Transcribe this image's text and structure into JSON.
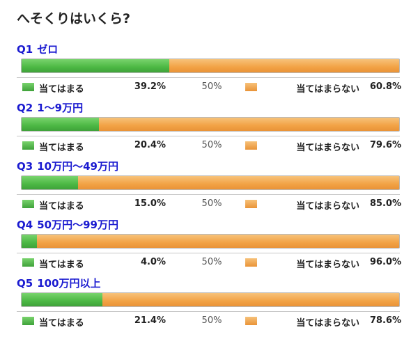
{
  "title": "へそくりはいくら?",
  "legend": {
    "yes_label": "当てはまる",
    "no_label": "当てはまらない",
    "mid_label": "50%"
  },
  "colors": {
    "yes": "#4cb844",
    "no": "#f2a245",
    "question_text": "#1a1ad0"
  },
  "questions": [
    {
      "num": "Q1",
      "text": "ゼロ",
      "yes_pct": "39.2%",
      "no_pct": "60.8%"
    },
    {
      "num": "Q2",
      "text": "1～9万円",
      "yes_pct": "20.4%",
      "no_pct": "79.6%"
    },
    {
      "num": "Q3",
      "text": "10万円～49万円",
      "yes_pct": "15.0%",
      "no_pct": "85.0%"
    },
    {
      "num": "Q4",
      "text": "50万円～99万円",
      "yes_pct": "4.0%",
      "no_pct": "96.0%"
    },
    {
      "num": "Q5",
      "text": "100万円以上",
      "yes_pct": "21.4%",
      "no_pct": "78.6%"
    }
  ],
  "chart_data": {
    "type": "bar",
    "stacked": true,
    "orientation": "horizontal",
    "title": "へそくりはいくら?",
    "categories": [
      "Q1 ゼロ",
      "Q2 1～9万円",
      "Q3 10万円～49万円",
      "Q4 50万円～99万円",
      "Q5 100万円以上"
    ],
    "series": [
      {
        "name": "当てはまる",
        "values": [
          39.2,
          20.4,
          15.0,
          4.0,
          21.4
        ]
      },
      {
        "name": "当てはまらない",
        "values": [
          60.8,
          79.6,
          85.0,
          96.0,
          78.6
        ]
      }
    ],
    "xlim": [
      0,
      100
    ]
  }
}
